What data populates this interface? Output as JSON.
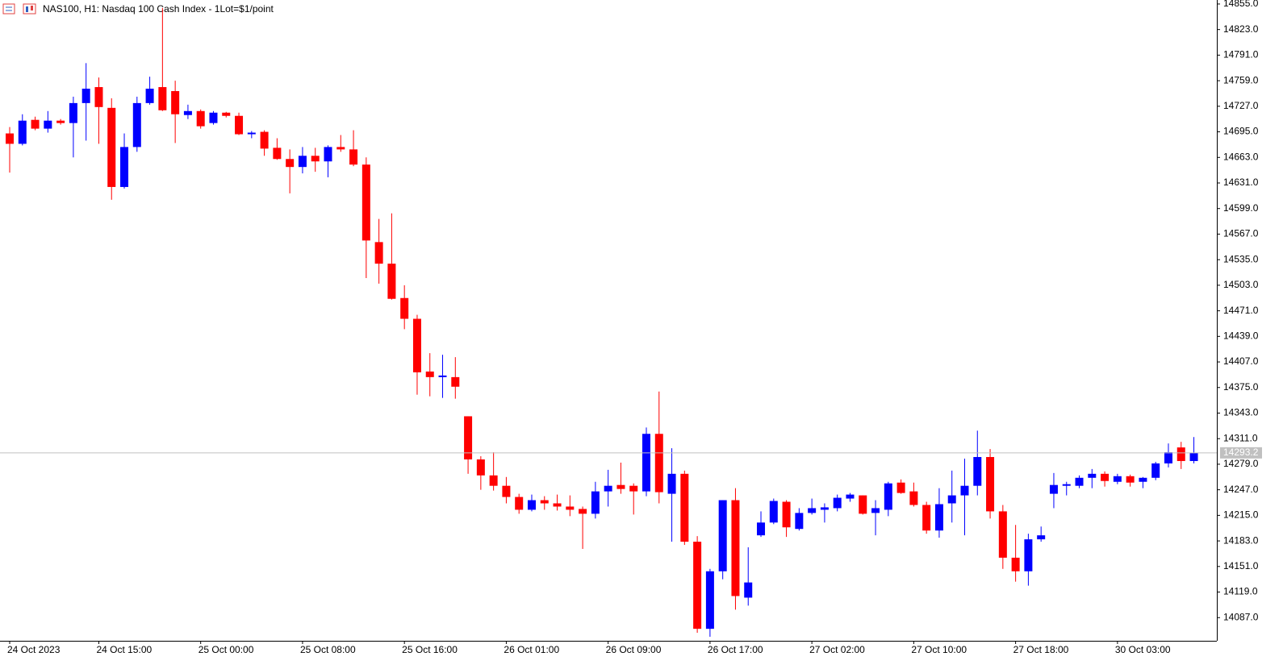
{
  "chart_data": {
    "type": "candlestick",
    "title": "NAS100, H1:  Nasdaq 100 Cash Index - 1Lot=$1/point",
    "categories": [
      "24 Oct 2023",
      null,
      null,
      null,
      null,
      null,
      null,
      "24 Oct 15:00",
      null,
      null,
      null,
      null,
      null,
      null,
      null,
      "25 Oct 00:00",
      null,
      null,
      null,
      null,
      null,
      null,
      null,
      "25 Oct 08:00",
      null,
      null,
      null,
      null,
      null,
      null,
      null,
      "25 Oct 16:00",
      null,
      null,
      null,
      null,
      null,
      null,
      null,
      "26 Oct 01:00",
      null,
      null,
      null,
      null,
      null,
      null,
      null,
      "26 Oct 09:00",
      null,
      null,
      null,
      null,
      null,
      null,
      null,
      "26 Oct 17:00",
      null,
      null,
      null,
      null,
      null,
      null,
      null,
      "27 Oct 02:00",
      null,
      null,
      null,
      null,
      null,
      null,
      null,
      "27 Oct 10:00",
      null,
      null,
      null,
      null,
      null,
      null,
      null,
      "27 Oct 18:00",
      null,
      null,
      null,
      null,
      null,
      null,
      null,
      "30 Oct 03:00",
      null,
      null,
      null,
      null,
      null,
      null
    ],
    "open": [
      14693,
      14680,
      14710,
      14699,
      14709,
      14706,
      14731,
      14751,
      14725,
      14626,
      14676,
      14731,
      14751,
      14746,
      14716,
      14721,
      14706,
      14719,
      14715,
      14692,
      14695,
      14675,
      14661,
      14651,
      14665,
      14658,
      14676,
      14673,
      14654,
      14557,
      14530,
      14487,
      14461,
      14395,
      14388,
      14388,
      14339,
      14285,
      14265,
      14252,
      14238,
      14222,
      14234,
      14230,
      14226,
      14223,
      14217,
      14245,
      14253,
      14252,
      14245,
      14317,
      14242,
      14267,
      14182,
      14073,
      14145,
      14234,
      14112,
      14190,
      14206,
      14232,
      14198,
      14218,
      14222,
      14224,
      14236,
      14240,
      14218,
      14222,
      14256,
      14245,
      14228,
      14196,
      14230,
      14240,
      14252,
      14288,
      14220,
      14162,
      14145,
      14185,
      14242,
      14252,
      14252,
      14262,
      14267,
      14257,
      14264,
      14257,
      14262,
      14280,
      14300,
      14283
    ],
    "high": [
      14701,
      14717,
      14714,
      14721,
      14711,
      14739,
      14781,
      14763,
      14737,
      14693,
      14739,
      14764,
      14850,
      14759,
      14729,
      14723,
      14721,
      14720,
      14719,
      14696,
      14697,
      14687,
      14673,
      14676,
      14675,
      14678,
      14691,
      14697,
      14663,
      14586,
      14593,
      14503,
      14466,
      14418,
      14416,
      14413,
      14339,
      14289,
      14294,
      14263,
      14242,
      14241,
      14239,
      14241,
      14240,
      14226,
      14257,
      14272,
      14281,
      14255,
      14325,
      14370,
      14299,
      14271,
      14189,
      14148,
      14234,
      14249,
      14175,
      14220,
      14236,
      14234,
      14224,
      14236,
      14230,
      14241,
      14243,
      14240,
      14234,
      14257,
      14260,
      14256,
      14232,
      14249,
      14271,
      14286,
      14321,
      14298,
      14228,
      14203,
      14192,
      14201,
      14268,
      14257,
      14265,
      14273,
      14270,
      14267,
      14266,
      14263,
      14282,
      14305,
      14307,
      14313
    ],
    "low": [
      14644,
      14678,
      14697,
      14694,
      14704,
      14663,
      14684,
      14680,
      14610,
      14624,
      14670,
      14729,
      14721,
      14681,
      14711,
      14699,
      14704,
      14713,
      14691,
      14687,
      14665,
      14660,
      14618,
      14643,
      14645,
      14638,
      14670,
      14652,
      14512,
      14505,
      14485,
      14448,
      14366,
      14364,
      14362,
      14361,
      14267,
      14247,
      14246,
      14230,
      14217,
      14220,
      14222,
      14221,
      14214,
      14173,
      14211,
      14226,
      14242,
      14216,
      14239,
      14230,
      14182,
      14178,
      14068,
      14063,
      14135,
      14097,
      14102,
      14188,
      14204,
      14188,
      14196,
      14216,
      14206,
      14220,
      14232,
      14216,
      14190,
      14214,
      14242,
      14226,
      14192,
      14187,
      14206,
      14190,
      14240,
      14211,
      14148,
      14132,
      14127,
      14182,
      14224,
      14240,
      14249,
      14249,
      14251,
      14254,
      14251,
      14249,
      14259,
      14275,
      14273,
      14280
    ],
    "close": [
      14680,
      14709,
      14699,
      14709,
      14706,
      14731,
      14749,
      14726,
      14626,
      14676,
      14731,
      14749,
      14722,
      14717,
      14721,
      14702,
      14719,
      14715,
      14692,
      14694,
      14674,
      14661,
      14651,
      14665,
      14658,
      14676,
      14673,
      14654,
      14559,
      14530,
      14486,
      14461,
      14394,
      14388,
      14390,
      14376,
      14285,
      14265,
      14252,
      14238,
      14222,
      14234,
      14230,
      14226,
      14222,
      14217,
      14245,
      14252,
      14248,
      14245,
      14317,
      14244,
      14267,
      14182,
      14073,
      14145,
      14234,
      14114,
      14131,
      14206,
      14233,
      14200,
      14218,
      14224,
      14225,
      14237,
      14241,
      14217,
      14224,
      14255,
      14243,
      14228,
      14196,
      14229,
      14240,
      14252,
      14288,
      14220,
      14162,
      14145,
      14185,
      14190,
      14253,
      14254,
      14262,
      14267,
      14258,
      14264,
      14256,
      14262,
      14280,
      14294,
      14283,
      14293.2
    ],
    "up_color": "#0000ff",
    "down_color": "#ff0000",
    "last_price": 14293.2,
    "ylim": [
      14058,
      14860
    ],
    "yticks": [
      {
        "value": 14855,
        "label": "14855.0"
      },
      {
        "value": 14823,
        "label": "14823.0"
      },
      {
        "value": 14791,
        "label": "14791.0"
      },
      {
        "value": 14759,
        "label": "14759.0"
      },
      {
        "value": 14727,
        "label": "14727.0"
      },
      {
        "value": 14695,
        "label": "14695.0"
      },
      {
        "value": 14663,
        "label": "14663.0"
      },
      {
        "value": 14631,
        "label": "14631.0"
      },
      {
        "value": 14599,
        "label": "14599.0"
      },
      {
        "value": 14567,
        "label": "14567.0"
      },
      {
        "value": 14535,
        "label": "14535.0"
      },
      {
        "value": 14503,
        "label": "14503.0"
      },
      {
        "value": 14471,
        "label": "14471.0"
      },
      {
        "value": 14439,
        "label": "14439.0"
      },
      {
        "value": 14407,
        "label": "14407.0"
      },
      {
        "value": 14375,
        "label": "14375.0"
      },
      {
        "value": 14343,
        "label": "14343.0"
      },
      {
        "value": 14311,
        "label": "14311.0"
      },
      {
        "value": 14279,
        "label": "14279.0"
      },
      {
        "value": 14247,
        "label": "14247.0"
      },
      {
        "value": 14215,
        "label": "14215.0"
      },
      {
        "value": 14183,
        "label": "14183.0"
      },
      {
        "value": 14151,
        "label": "14151.0"
      },
      {
        "value": 14119,
        "label": "14119.0"
      },
      {
        "value": 14087,
        "label": "14087.0"
      }
    ],
    "grid": false
  }
}
